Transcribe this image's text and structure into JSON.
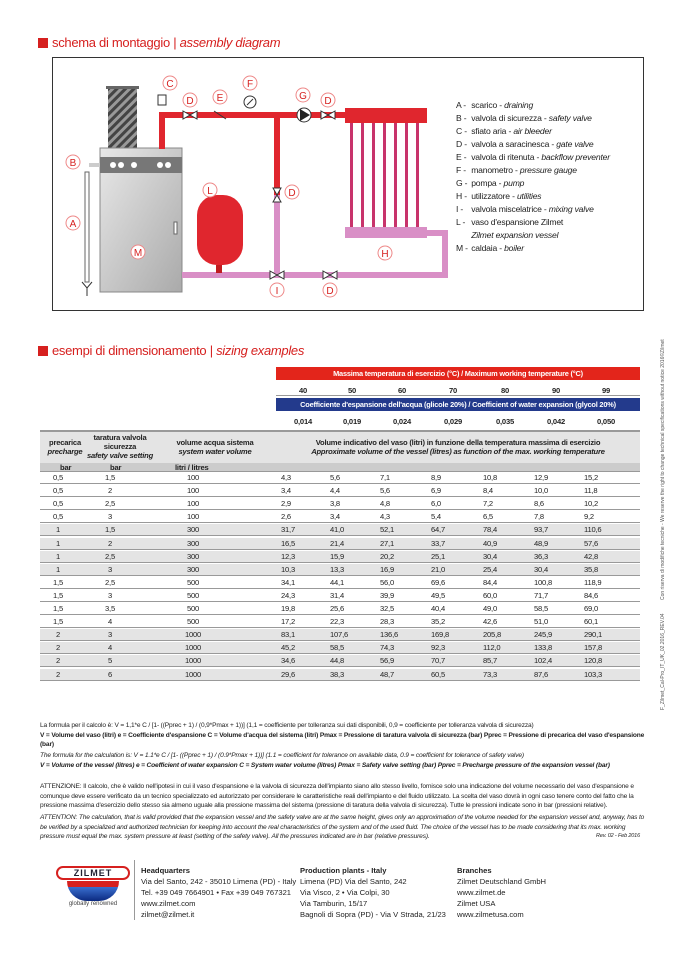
{
  "section1": {
    "title_it": "schema di montaggio",
    "sep": "|",
    "title_en": "assembly diagram"
  },
  "diagram": {
    "labels": [
      "A",
      "B",
      "C",
      "D",
      "E",
      "F",
      "G",
      "H",
      "I",
      "L",
      "M"
    ],
    "legend": [
      {
        "key": "A -",
        "it": "scarico -",
        "en": "draining"
      },
      {
        "key": "B -",
        "it": "valvola di sicurezza -",
        "en": "safety valve"
      },
      {
        "key": "C -",
        "it": "sfiato aria -",
        "en": "air bleeder"
      },
      {
        "key": "D -",
        "it": "valvola a saracinesca -",
        "en": "gate valve"
      },
      {
        "key": "E -",
        "it": "valvola di ritenuta -",
        "en": "backflow preventer"
      },
      {
        "key": "F -",
        "it": "manometro -",
        "en": "pressure gauge"
      },
      {
        "key": "G -",
        "it": "pompa -",
        "en": "pump"
      },
      {
        "key": "H -",
        "it": "utilizzatore -",
        "en": "utilities"
      },
      {
        "key": "I -",
        "it": "valvola miscelatrice -",
        "en": "mixing valve"
      },
      {
        "key": "L -",
        "it": "vaso d'espansione Zilmet",
        "en": ""
      },
      {
        "key": "",
        "it": "",
        "en": "Zilmet expansion vessel"
      },
      {
        "key": "M -",
        "it": "caldaia -",
        "en": "boiler"
      }
    ],
    "colors": {
      "supply": "#e0262e",
      "return": "#d98fc6",
      "accent": "#d6201f"
    }
  },
  "section2": {
    "title_it": "esempi di dimensionamento",
    "sep": "|",
    "title_en": "sizing examples"
  },
  "table": {
    "temp_header": "Massima temperatura di esercizio (°C) / Maximum working temperature (°C)",
    "temps": [
      "40",
      "50",
      "60",
      "70",
      "80",
      "90",
      "99"
    ],
    "coeff_header": "Coefficiente d'espansione dell'acqua (glicole 20%) / Coefficient of water expansion (glycol 20%)",
    "coeffs": [
      "0,014",
      "0,019",
      "0,024",
      "0,029",
      "0,035",
      "0,042",
      "0,050"
    ],
    "col_precharge": {
      "it": "precarica",
      "en": "precharge"
    },
    "col_safety": {
      "it1": "taratura valvola",
      "it2": "sicurezza",
      "en": "safety valve setting"
    },
    "col_volume": {
      "it": "volume acqua sistema",
      "en": "system water volume"
    },
    "col_vessel": {
      "it": "Volume indicativo del vaso (litri) in funzione della temperatura massima di esercizio",
      "en": "Approximate volume of the vessel (litres) as function of the max. working temperature"
    },
    "units": [
      "bar",
      "bar",
      "litri / litres"
    ],
    "rows": [
      [
        "0,5",
        "1,5",
        "100",
        "4,3",
        "5,6",
        "7,1",
        "8,9",
        "10,8",
        "12,9",
        "15,2"
      ],
      [
        "0,5",
        "2",
        "100",
        "3,4",
        "4,4",
        "5,6",
        "6,9",
        "8,4",
        "10,0",
        "11,8"
      ],
      [
        "0,5",
        "2,5",
        "100",
        "2,9",
        "3,8",
        "4,8",
        "6,0",
        "7,2",
        "8,6",
        "10,2"
      ],
      [
        "0,5",
        "3",
        "100",
        "2,6",
        "3,4",
        "4,3",
        "5,4",
        "6,5",
        "7,8",
        "9,2"
      ],
      [
        "1",
        "1,5",
        "300",
        "31,7",
        "41,0",
        "52,1",
        "64,7",
        "78,4",
        "93,7",
        "110,6"
      ],
      [
        "1",
        "2",
        "300",
        "16,5",
        "21,4",
        "27,1",
        "33,7",
        "40,9",
        "48,9",
        "57,6"
      ],
      [
        "1",
        "2,5",
        "300",
        "12,3",
        "15,9",
        "20,2",
        "25,1",
        "30,4",
        "36,3",
        "42,8"
      ],
      [
        "1",
        "3",
        "300",
        "10,3",
        "13,3",
        "16,9",
        "21,0",
        "25,4",
        "30,4",
        "35,8"
      ],
      [
        "1,5",
        "2,5",
        "500",
        "34,1",
        "44,1",
        "56,0",
        "69,6",
        "84,4",
        "100,8",
        "118,9"
      ],
      [
        "1,5",
        "3",
        "500",
        "24,3",
        "31,4",
        "39,9",
        "49,5",
        "60,0",
        "71,7",
        "84,6"
      ],
      [
        "1,5",
        "3,5",
        "500",
        "19,8",
        "25,6",
        "32,5",
        "40,4",
        "49,0",
        "58,5",
        "69,0"
      ],
      [
        "1,5",
        "4",
        "500",
        "17,2",
        "22,3",
        "28,3",
        "35,2",
        "42,6",
        "51,0",
        "60,1"
      ],
      [
        "2",
        "3",
        "1000",
        "83,1",
        "107,6",
        "136,6",
        "169,8",
        "205,8",
        "245,9",
        "290,1"
      ],
      [
        "2",
        "4",
        "1000",
        "45,2",
        "58,5",
        "74,3",
        "92,3",
        "112,0",
        "133,8",
        "157,8"
      ],
      [
        "2",
        "5",
        "1000",
        "34,6",
        "44,8",
        "56,9",
        "70,7",
        "85,7",
        "102,4",
        "120,8"
      ],
      [
        "2",
        "6",
        "1000",
        "29,6",
        "38,3",
        "48,7",
        "60,5",
        "73,3",
        "87,6",
        "103,3"
      ]
    ],
    "colors": {
      "red_bar": "#e3251b",
      "blue_bar": "#233a8c",
      "grey_row": "#e4e4e4"
    }
  },
  "notes": {
    "formula_it": "La formula per il calcolo è: V = 1,1*e C / [1- ((Pprec + 1) / (0,9*Pmax + 1))]    (1,1 = coefficiente per tolleranza sui dati disponibili, 0,9 = coefficiente per tolleranza valvola di sicurezza)",
    "legend_it": "V = Volume del vaso (litri)   e = Coefficiente d'espansione   C = Volume d'acqua del sistema (litri)   Pmax = Pressione di taratura valvola di sicurezza (bar)   Pprec = Pressione di precarica del vaso d'espansione (bar)",
    "formula_en": "The formula for the calculation is: V = 1.1*e C / [1- ((Pprec + 1) / (0.9*Pmax + 1))]    (1.1 = coefficient for tolerance on available data, 0.9 = coefficient for tolerance of safety valve)",
    "legend_en": "V = Volume of the vessel (litres)   e = Coefficient of water expansion   C = System water volume (litres)   Pmax = Safety valve setting (bar)   Pprec = Precharge pressure of the expansion vessel (bar)",
    "attention_it": "ATTENZIONE: Il calcolo, che è valido nell'ipotesi in cui il vaso d'espansione e la valvola di sicurezza dell'impianto siano allo stesso livello, fornisce solo una indicazione del volume necessario del vaso d'espansione e comunque deve essere verificato da un tecnico specializzato ed autorizzato per considerare le caratteristiche reali dell'impianto e del fluido utilizzato. La scelta del vaso dovrà in ogni caso tenere conto del fatto che la pressione massima d'esercizio dello stesso sia almeno uguale alla pressione massima del sistema (pressione di taratura della valvola di sicurezza). Tutte le pressioni indicate sono in bar (pressioni relative).",
    "attention_en": "ATTENTION: The calculation, that is valid provided that the expansion vessel and the safety valve are at the same height, gives only an approximation of the volume needed for the expansion vessel and, anyway, has to be verified by a specialized and authorized technician for keeping into account the real characteristics of the system and of the used fluid. The choice of the vessel has to be made considering that its max. working pressure must equal the max. system pressure at least (setting of the safety valve). All the pressures indicated are in bar (relative pressures).",
    "rev": "Rev. 02 - Feb 2016"
  },
  "footer": {
    "logo": "ZILMET",
    "tagline": "globally renowned",
    "hq": {
      "title": "Headquarters",
      "lines": [
        "Via del Santo, 242 - 35010 Limena (PD) - Italy",
        "Tel. +39 049 7664901 • Fax +39 049 767321",
        "www.zilmet.com",
        "zilmet@zilmet.it"
      ]
    },
    "plants": {
      "title": "Production plants - Italy",
      "lines": [
        "Limena (PD)  Via del Santo, 242",
        "Via Visco, 2 • Via Colpi, 30",
        "Via Tamburin, 15/17",
        "Bagnoli di Sopra (PD) - Via V Strada, 21/23"
      ]
    },
    "branches": {
      "title": "Branches",
      "lines": [
        "Zilmet  Deutschland GmbH",
        "www.zilmet.de",
        "Zilmet USA",
        "www.zilmetusa.com"
      ]
    }
  },
  "side": {
    "code": "F_Zilmet_Cal-Pro_IT_UK_02.2016_REV.04",
    "disclaimer": "Con riserva di modifiche tecniche - We reserve the right to change technical specifications without notice     2016©Zilmet"
  }
}
